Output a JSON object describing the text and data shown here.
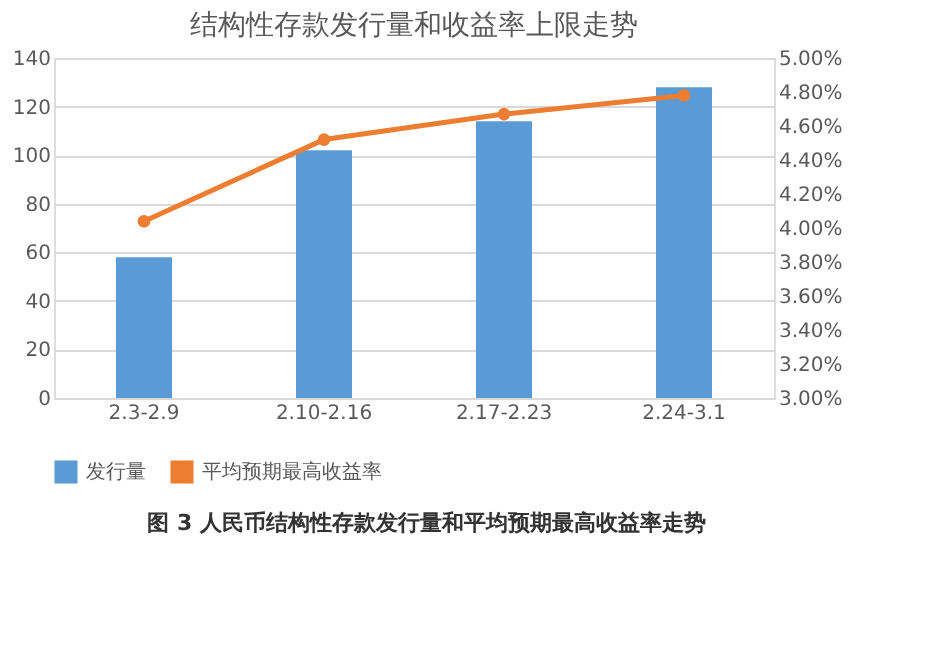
{
  "chart_data": {
    "type": "bar",
    "title": "结构性存款发行量和收益率上限走势",
    "categories": [
      "2.3-2.9",
      "2.10-2.16",
      "2.17-2.23",
      "2.24-3.1"
    ],
    "series": [
      {
        "name": "发行量",
        "color": "#5b9bd5",
        "values": [
          58,
          102,
          114,
          128
        ]
      },
      {
        "name": "平均预期最高收益率",
        "type": "line",
        "axis": "y2",
        "color": "#ed7d31",
        "marker": "circle",
        "values": [
          4.04,
          4.52,
          4.67,
          4.78
        ]
      }
    ],
    "ylim": [
      0,
      140
    ],
    "yticks": [
      0,
      20,
      40,
      60,
      80,
      100,
      120,
      140
    ],
    "y2lim": [
      3.0,
      5.0
    ],
    "y2ticks": [
      {
        "value": 3.0,
        "label": "3.00%"
      },
      {
        "value": 3.2,
        "label": "3.20%"
      },
      {
        "value": 3.4,
        "label": "3.40%"
      },
      {
        "value": 3.6,
        "label": "3.60%"
      },
      {
        "value": 3.8,
        "label": "3.80%"
      },
      {
        "value": 4.0,
        "label": "4.00%"
      },
      {
        "value": 4.2,
        "label": "4.20%"
      },
      {
        "value": 4.4,
        "label": "4.40%"
      },
      {
        "value": 4.6,
        "label": "4.60%"
      },
      {
        "value": 4.8,
        "label": "4.80%"
      },
      {
        "value": 5.0,
        "label": "5.00%"
      }
    ],
    "grid": "y",
    "legend": "bottom",
    "annotations": [
      "图 3 人民币结构性存款发行量和平均预期最高收益率走势"
    ]
  }
}
